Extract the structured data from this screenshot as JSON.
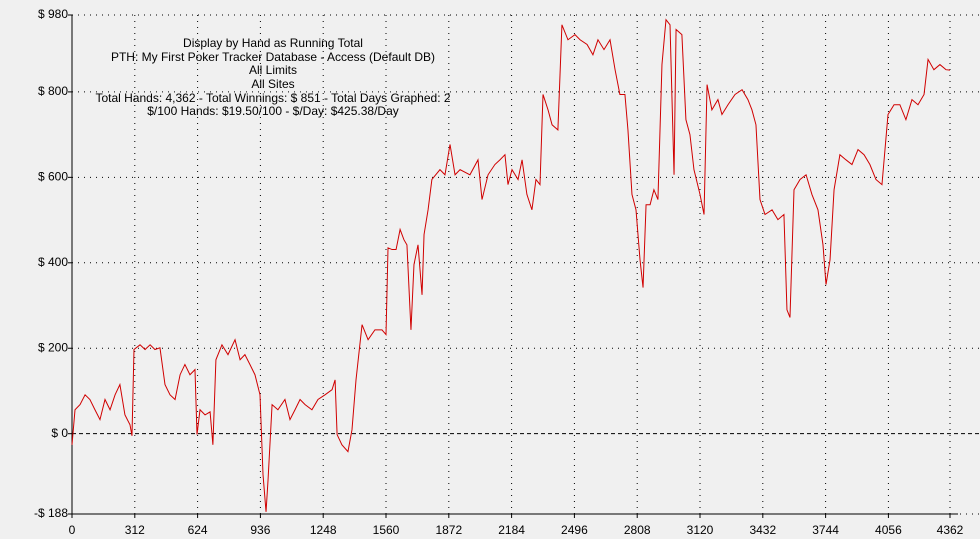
{
  "chart_data": {
    "type": "line",
    "annotations": [
      "Display by Hand as Running Total",
      "PTH: My First Poker Tracker Database - Access (Default DB)",
      "All Limits",
      "All Sites",
      "Total Hands: 4,362 - Total Winnings: $ 851 - Total Days Graphed: 2",
      "$/100 Hands: $19.50/100 - $/Day: $425.38/Day"
    ],
    "x": [
      0,
      15,
      40,
      65,
      89,
      114,
      139,
      164,
      189,
      214,
      238,
      263,
      288,
      298,
      308,
      338,
      363,
      388,
      412,
      437,
      462,
      487,
      512,
      537,
      561,
      586,
      611,
      621,
      636,
      661,
      686,
      700,
      715,
      745,
      775,
      810,
      835,
      859,
      884,
      909,
      934,
      949,
      964,
      974,
      994,
      1023,
      1058,
      1083,
      1108,
      1133,
      1158,
      1192,
      1222,
      1257,
      1292,
      1307,
      1317,
      1341,
      1371,
      1391,
      1411,
      1441,
      1471,
      1505,
      1540,
      1560,
      1570,
      1590,
      1610,
      1630,
      1649,
      1664,
      1684,
      1699,
      1719,
      1739,
      1749,
      1769,
      1788,
      1828,
      1853,
      1878,
      1903,
      1928,
      1977,
      2017,
      2037,
      2067,
      2101,
      2126,
      2151,
      2166,
      2186,
      2216,
      2236,
      2260,
      2285,
      2305,
      2325,
      2340,
      2365,
      2385,
      2414,
      2434,
      2464,
      2499,
      2524,
      2559,
      2588,
      2613,
      2643,
      2673,
      2698,
      2722,
      2747,
      2762,
      2782,
      2802,
      2822,
      2837,
      2852,
      2872,
      2891,
      2911,
      2931,
      2951,
      2971,
      2991,
      3001,
      3030,
      3050,
      3070,
      3090,
      3120,
      3140,
      3155,
      3179,
      3209,
      3229,
      3259,
      3294,
      3329,
      3358,
      3378,
      3398,
      3418,
      3443,
      3478,
      3507,
      3537,
      3552,
      3567,
      3587,
      3617,
      3647,
      3676,
      3706,
      3731,
      3746,
      3766,
      3786,
      3815,
      3845,
      3875,
      3905,
      3935,
      3964,
      3994,
      4024,
      4054,
      4084,
      4113,
      4143,
      4173,
      4203,
      4233,
      4253,
      4282,
      4312,
      4342,
      4362
    ],
    "series": [
      {
        "name": "Running Total",
        "color": "#d00000",
        "values": [
          -26,
          56,
          68,
          91,
          80,
          56,
          33,
          80,
          56,
          91,
          115,
          44,
          21,
          -5,
          197,
          208,
          197,
          208,
          197,
          201,
          115,
          91,
          80,
          138,
          162,
          138,
          150,
          -2,
          56,
          44,
          51,
          -26,
          173,
          208,
          185,
          220,
          173,
          185,
          162,
          138,
          91,
          -96,
          -183,
          -108,
          68,
          56,
          80,
          33,
          56,
          80,
          68,
          56,
          80,
          91,
          103,
          126,
          -2,
          -26,
          -42,
          9,
          126,
          255,
          220,
          243,
          243,
          232,
          435,
          431,
          431,
          478,
          454,
          442,
          243,
          396,
          442,
          325,
          466,
          524,
          595,
          618,
          606,
          677,
          606,
          618,
          606,
          641,
          548,
          606,
          630,
          641,
          653,
          583,
          618,
          595,
          641,
          560,
          524,
          595,
          583,
          794,
          758,
          723,
          711,
          957,
          922,
          934,
          922,
          911,
          887,
          922,
          899,
          922,
          852,
          794,
          794,
          711,
          560,
          524,
          407,
          342,
          536,
          536,
          571,
          548,
          864,
          969,
          957,
          606,
          946,
          934,
          735,
          700,
          618,
          560,
          513,
          817,
          758,
          782,
          747,
          770,
          794,
          805,
          782,
          758,
          723,
          548,
          513,
          524,
          501,
          513,
          290,
          272,
          571,
          595,
          606,
          560,
          524,
          442,
          349,
          407,
          571,
          653,
          641,
          630,
          665,
          653,
          630,
          595,
          583,
          747,
          770,
          770,
          735,
          782,
          770,
          794,
          876,
          852,
          864,
          852,
          851
        ]
      }
    ],
    "xlim": [
      0,
      4362
    ],
    "ylim": [
      -188,
      980
    ],
    "xticks": [
      0,
      312,
      624,
      936,
      1248,
      1560,
      1872,
      2184,
      2496,
      2808,
      3120,
      3432,
      3744,
      4056,
      4362
    ],
    "yticks": [
      {
        "value": -188,
        "label": "-$ 188"
      },
      {
        "value": 0,
        "label": "$ 0"
      },
      {
        "value": 200,
        "label": "$ 200"
      },
      {
        "value": 400,
        "label": "$ 400"
      },
      {
        "value": 600,
        "label": "$ 600"
      },
      {
        "value": 800,
        "label": "$ 800"
      },
      {
        "value": 980,
        "label": "$ 980"
      }
    ],
    "grid": true
  }
}
